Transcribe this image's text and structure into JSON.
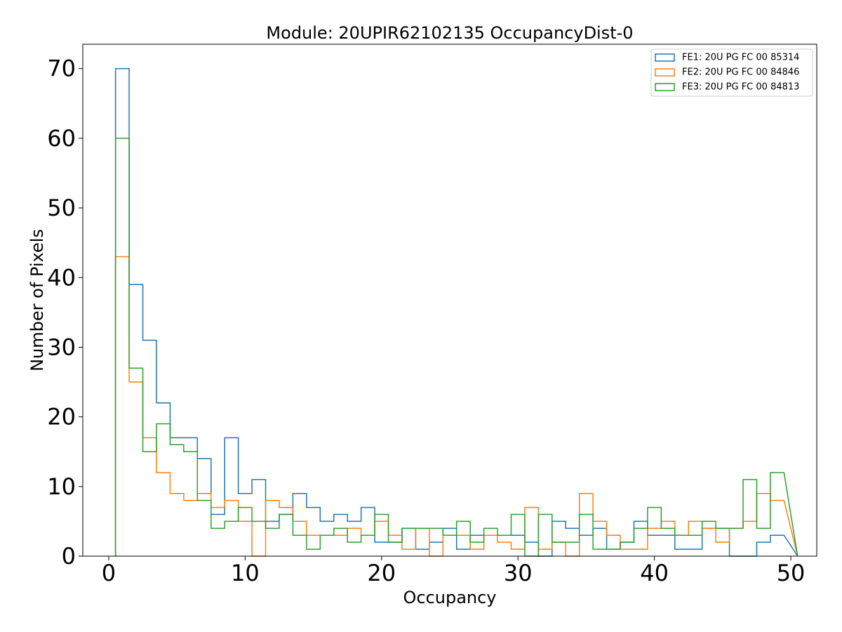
{
  "chart_data": {
    "type": "histogram-step",
    "title": "Module: 20UPIR62102135 OccupancyDist-0",
    "xlabel": "Occupancy",
    "ylabel": "Number of Pixels",
    "xlim": [
      -1.9,
      51.9
    ],
    "ylim": [
      0,
      73.5
    ],
    "xticks": [
      0,
      10,
      20,
      30,
      40,
      50
    ],
    "yticks": [
      0,
      10,
      20,
      30,
      40,
      50,
      60,
      70
    ],
    "bin_edges": [
      0.5,
      1.5,
      2.5,
      3.5,
      4.5,
      5.5,
      6.5,
      7.5,
      8.5,
      9.5,
      10.5,
      11.5,
      12.5,
      13.5,
      14.5,
      15.5,
      16.5,
      17.5,
      18.5,
      19.5,
      20.5,
      21.5,
      22.5,
      23.5,
      24.5,
      25.5,
      26.5,
      27.5,
      28.5,
      29.5,
      30.5,
      31.5,
      32.5,
      33.5,
      34.5,
      35.5,
      36.5,
      37.5,
      38.5,
      39.5,
      40.5,
      41.5,
      42.5,
      43.5,
      44.5,
      45.5,
      46.5,
      47.5,
      48.5,
      49.5
    ],
    "grid": false,
    "legend_position": "top-right",
    "series": [
      {
        "name": "FE1: 20U PG FC 00 85314",
        "color": "#1f77b4",
        "values": [
          70,
          39,
          31,
          22,
          17,
          17,
          14,
          6,
          17,
          9,
          11,
          5,
          6,
          9,
          7,
          5,
          6,
          5,
          7,
          2,
          2,
          4,
          1,
          2,
          4,
          1,
          3,
          3,
          3,
          3,
          2,
          0,
          5,
          4,
          3,
          4,
          1,
          2,
          5,
          3,
          3,
          1,
          1,
          4,
          4,
          0,
          0,
          2,
          3
        ]
      },
      {
        "name": "FE2: 20U PG FC 00 84846",
        "color": "#ff7f0e",
        "values": [
          43,
          25,
          17,
          12,
          9,
          8,
          9,
          7,
          8,
          5,
          0,
          8,
          7,
          5,
          3,
          3,
          3,
          4,
          3,
          5,
          3,
          1,
          4,
          0,
          3,
          3,
          1,
          3,
          2,
          1,
          7,
          1,
          2,
          0,
          9,
          5,
          3,
          1,
          1,
          4,
          5,
          3,
          5,
          4,
          2,
          4,
          5,
          9,
          8
        ]
      },
      {
        "name": "FE3: 20U PG FC 00 84813",
        "color": "#2ca02c",
        "values": [
          60,
          27,
          15,
          19,
          16,
          15,
          8,
          4,
          5,
          7,
          5,
          4,
          6,
          3,
          1,
          3,
          4,
          2,
          3,
          6,
          2,
          4,
          4,
          4,
          3,
          5,
          2,
          4,
          3,
          6,
          0,
          6,
          2,
          2,
          6,
          1,
          1,
          2,
          4,
          7,
          4,
          3,
          3,
          5,
          4,
          4,
          11,
          4,
          12
        ]
      }
    ]
  }
}
